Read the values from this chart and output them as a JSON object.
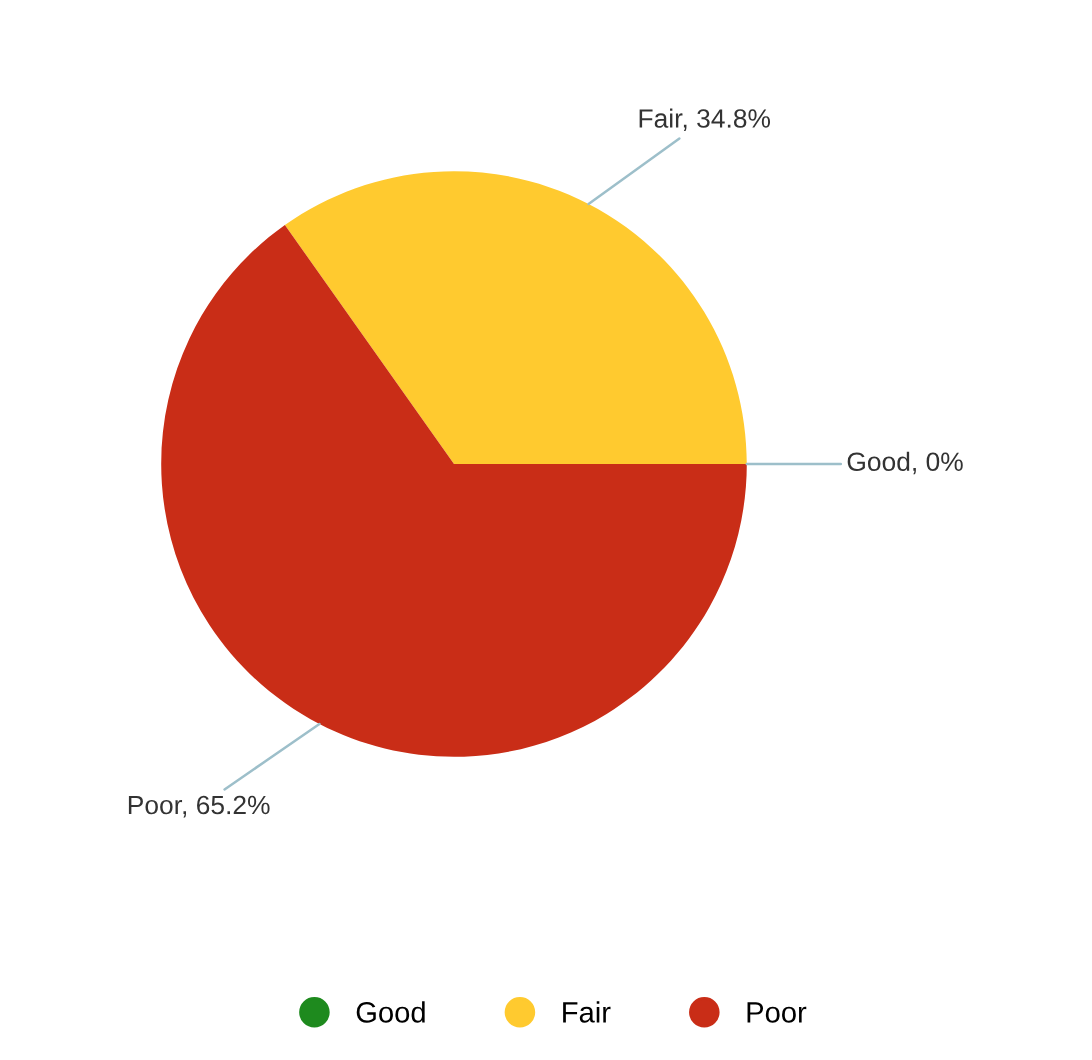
{
  "chart_data": {
    "type": "pie",
    "categories": [
      "Good",
      "Fair",
      "Poor"
    ],
    "values": [
      0,
      34.8,
      65.2
    ],
    "colors": [
      "#1e8a1e",
      "#ffca2f",
      "#c92d17"
    ],
    "value_labels": [
      "Good, 0%",
      "Fair, 34.8%",
      "Poor, 65.2%"
    ],
    "legend": "bottom"
  }
}
